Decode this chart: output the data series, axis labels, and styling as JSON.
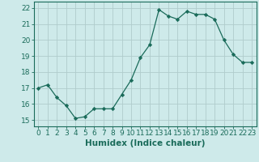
{
  "x": [
    0,
    1,
    2,
    3,
    4,
    5,
    6,
    7,
    8,
    9,
    10,
    11,
    12,
    13,
    14,
    15,
    16,
    17,
    18,
    19,
    20,
    21,
    22,
    23
  ],
  "y": [
    17.0,
    17.2,
    16.4,
    15.9,
    15.1,
    15.2,
    15.7,
    15.7,
    15.7,
    16.6,
    17.5,
    18.9,
    19.7,
    21.9,
    21.5,
    21.3,
    21.8,
    21.6,
    21.6,
    21.3,
    20.0,
    19.1,
    18.6,
    18.6
  ],
  "line_color": "#1a6b5a",
  "marker": "D",
  "marker_size": 2.2,
  "bg_color": "#ceeaea",
  "grid_color": "#b0cccc",
  "xlabel": "Humidex (Indice chaleur)",
  "xlim": [
    -0.5,
    23.5
  ],
  "ylim": [
    14.6,
    22.4
  ],
  "yticks": [
    15,
    16,
    17,
    18,
    19,
    20,
    21,
    22
  ],
  "xticks": [
    0,
    1,
    2,
    3,
    4,
    5,
    6,
    7,
    8,
    9,
    10,
    11,
    12,
    13,
    14,
    15,
    16,
    17,
    18,
    19,
    20,
    21,
    22,
    23
  ],
  "tick_fontsize": 6.5,
  "label_fontsize": 7.5
}
